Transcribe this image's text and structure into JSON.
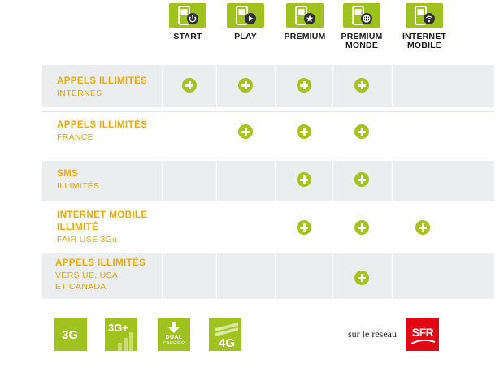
{
  "plans": [
    {
      "id": "start",
      "label": "START",
      "icon": "phone-power-icon"
    },
    {
      "id": "play",
      "label": "PLAY",
      "icon": "phone-play-icon"
    },
    {
      "id": "premium",
      "label": "PREMIUM",
      "icon": "phone-star-icon"
    },
    {
      "id": "premium-monde",
      "label": "PREMIUM MONDE",
      "label_lines": [
        "PREMIUM",
        "MONDE"
      ],
      "icon": "phone-globe-icon"
    },
    {
      "id": "internet-mobile",
      "label": "INTERNET MOBILE",
      "label_lines": [
        "INTERNET",
        "MOBILE"
      ],
      "icon": "phone-wifi-icon"
    }
  ],
  "features": [
    {
      "title": "APPELS ILLIMITÉS",
      "subtitle": [
        "INTERNES"
      ],
      "included": [
        true,
        true,
        true,
        true,
        false
      ]
    },
    {
      "title": "APPELS ILLIMITÉS",
      "subtitle": [
        "FRANCE"
      ],
      "included": [
        false,
        true,
        true,
        true,
        false
      ]
    },
    {
      "title": "SMS",
      "subtitle": [
        "ILLIMITÉS"
      ],
      "included": [
        false,
        false,
        true,
        true,
        false
      ]
    },
    {
      "title": "INTERNET MOBILE ILLIMITÉ",
      "title_lines": [
        "INTERNET MOBILE",
        "ILLIMITÉ"
      ],
      "subtitle": [
        "FAIR USE 3Go"
      ],
      "included": [
        false,
        false,
        true,
        true,
        true
      ]
    },
    {
      "title": "APPELS ILLIMITÉS",
      "subtitle": [
        "VERS UE, USA",
        "ET CANADA"
      ],
      "included": [
        false,
        false,
        false,
        true,
        false
      ]
    }
  ],
  "networks": [
    {
      "label": "3G",
      "icon": "3g-icon"
    },
    {
      "label": "3G+",
      "icon": "3g-plus-icon"
    },
    {
      "label": "DUAL CARRIER",
      "label_lines": [
        "DUAL",
        "CARRIER"
      ],
      "icon": "dual-carrier-icon"
    },
    {
      "label": "4G",
      "icon": "4g-icon"
    }
  ],
  "operator": {
    "prefix": "sur le réseau",
    "name": "SFR",
    "brand_color": "#e30613"
  },
  "colors": {
    "accent_green": "#9fc21f",
    "label_orange": "#f2a900",
    "row_shade": "#ecedef"
  }
}
